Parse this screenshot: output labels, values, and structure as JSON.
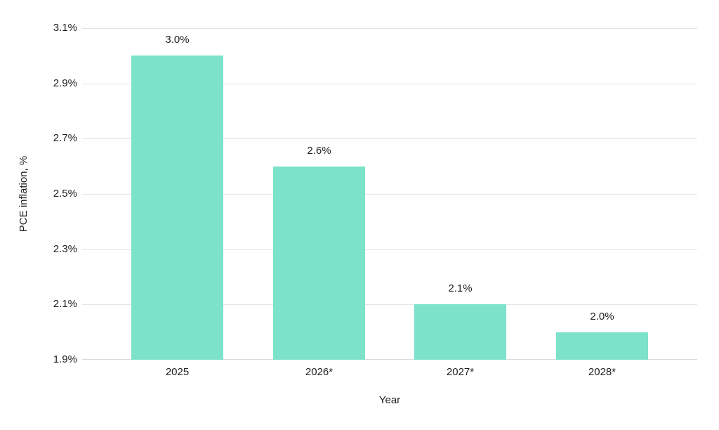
{
  "chart_data": {
    "type": "bar",
    "categories": [
      "2025",
      "2026*",
      "2027*",
      "2028*"
    ],
    "values": [
      3.0,
      2.6,
      2.1,
      2.0
    ],
    "value_labels": [
      "3.0%",
      "2.6%",
      "2.1%",
      "2.0%"
    ],
    "title": "",
    "xlabel": "Year",
    "ylabel": "PCE inflation, %",
    "ylim": [
      1.9,
      3.1
    ],
    "ytick_step": 0.2,
    "ytick_labels": [
      "1.9%",
      "2.1%",
      "2.3%",
      "2.5%",
      "2.7%",
      "2.9%",
      "3.1%"
    ],
    "grid": true,
    "legend": "none",
    "colors": {
      "bar": "#7CE2C9",
      "gridline": "#e4e4e4",
      "baseline": "#d9d9d9",
      "text": "#212121",
      "background": "#ffffff"
    }
  }
}
